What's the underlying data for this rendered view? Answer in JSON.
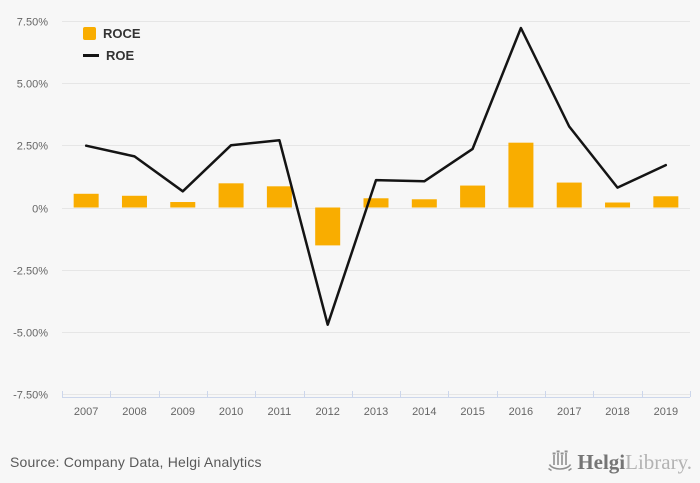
{
  "chart_data": {
    "type": "combo",
    "title": "",
    "xlabel": "",
    "ylabel": "",
    "unit": "%",
    "categories": [
      "2007",
      "2008",
      "2009",
      "2010",
      "2011",
      "2012",
      "2013",
      "2014",
      "2015",
      "2016",
      "2017",
      "2018",
      "2019"
    ],
    "series": [
      {
        "name": "ROCE",
        "type": "bar",
        "color": "#f9ad00",
        "values": [
          0.55,
          0.47,
          0.22,
          0.97,
          0.85,
          -1.52,
          0.37,
          0.33,
          0.88,
          2.6,
          1.0,
          0.2,
          0.45
        ]
      },
      {
        "name": "ROE",
        "type": "line",
        "color": "#141414",
        "values": [
          2.48,
          2.05,
          0.65,
          2.5,
          2.7,
          -4.7,
          1.1,
          1.05,
          2.35,
          7.2,
          3.25,
          0.8,
          1.7
        ]
      }
    ],
    "ylim": [
      -7.5,
      7.5
    ],
    "y_ticks": [
      {
        "value": 7.5,
        "label": "7.50%"
      },
      {
        "value": 5.0,
        "label": "5.00%"
      },
      {
        "value": 2.5,
        "label": "2.50%"
      },
      {
        "value": 0,
        "label": "0%"
      },
      {
        "value": -2.5,
        "label": "-2.50%"
      },
      {
        "value": -5.0,
        "label": "-5.00%"
      },
      {
        "value": -7.5,
        "label": "-7.50%"
      }
    ],
    "grid": true,
    "legend_position": "top-left"
  },
  "footer": {
    "source": "Source: Company Data, Helgi Analytics",
    "logo": {
      "brand_bold": "Helgi",
      "brand_light": "Library."
    }
  },
  "colors": {
    "background": "#f7f7f7",
    "grid_line": "#e6e6e6",
    "axis_line": "#ccd6eb",
    "axis_label": "#666666",
    "legend_text": "#333333",
    "bar": "#f9ad00",
    "line": "#141414",
    "source_text": "#595959",
    "logo_dark": "#757575",
    "logo_light": "#b3b3b3"
  }
}
